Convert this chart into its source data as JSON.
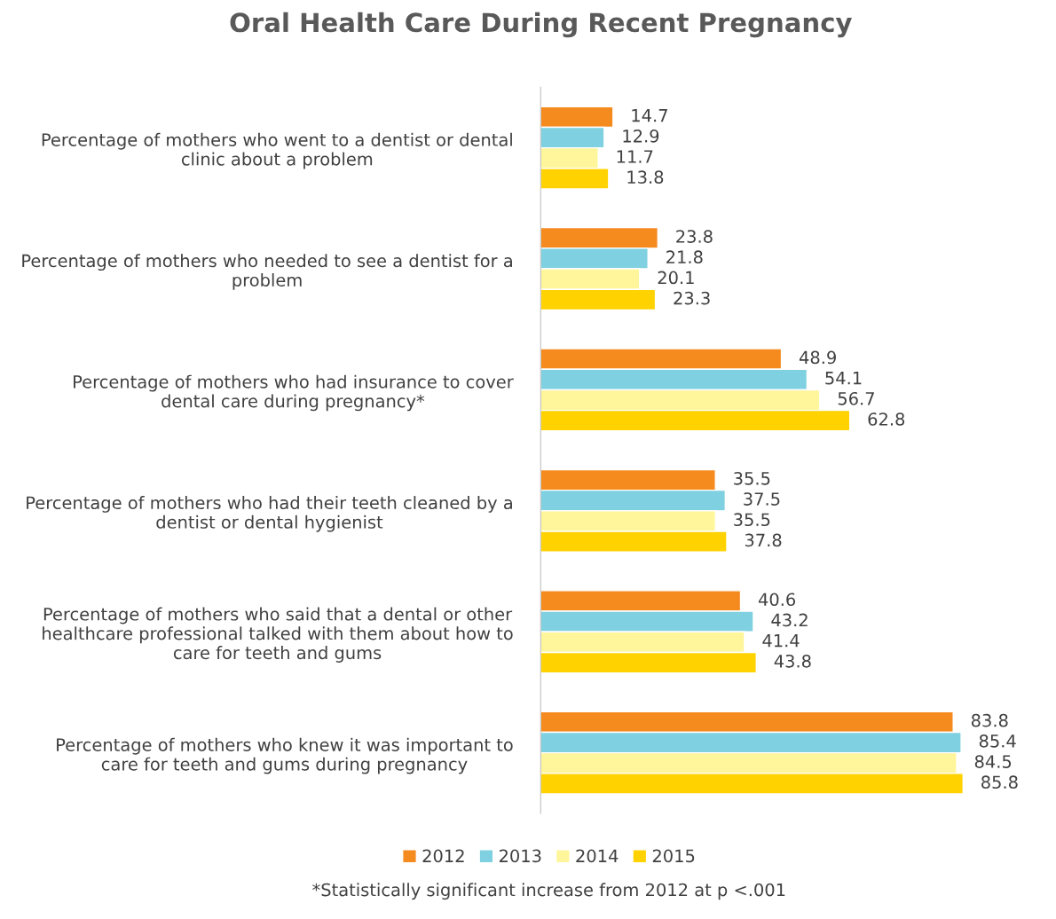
{
  "chart_data": {
    "type": "bar",
    "orientation": "horizontal",
    "title": "Oral Health Care During Recent Pregnancy",
    "categories": [
      "Percentage of mothers who went to a dentist or dental\nclinic about a problem",
      "Percentage of mothers who needed to see a dentist for a\nproblem",
      "Percentage of mothers who had insurance to cover\ndental care during pregnancy*",
      "Percentage of mothers who had their teeth cleaned by a\ndentist or dental hygienist",
      "Percentage of mothers who said that a dental or other\nhealthcare professional talked with them about how to\ncare for teeth and gums",
      "Percentage of mothers who knew it was important to\ncare for teeth and gums during pregnancy"
    ],
    "series": [
      {
        "name": "2012",
        "color": "#f58b1f",
        "values": [
          14.7,
          23.8,
          48.9,
          35.5,
          40.6,
          83.8
        ]
      },
      {
        "name": "2013",
        "color": "#7fd0e0",
        "values": [
          12.9,
          21.8,
          54.1,
          37.5,
          43.2,
          85.4
        ]
      },
      {
        "name": "2014",
        "color": "#fff59a",
        "values": [
          11.7,
          20.1,
          56.7,
          35.5,
          41.4,
          84.5
        ]
      },
      {
        "name": "2015",
        "color": "#ffd200",
        "values": [
          13.8,
          23.3,
          62.8,
          37.8,
          43.8,
          85.8
        ]
      }
    ],
    "tick_labels": "y",
    "data_labels": true,
    "legend": "bottom",
    "grid": false,
    "annotations": [
      "*Statistically significant increase from 2012 at p <.001"
    ]
  }
}
